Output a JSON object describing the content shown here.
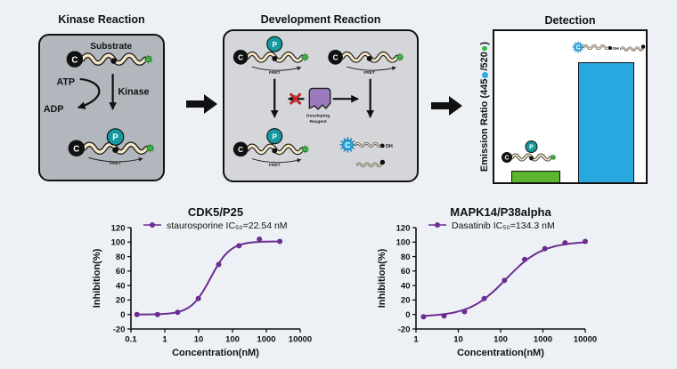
{
  "page": {
    "background": "#edf1f6"
  },
  "diagram": {
    "kinase_panel": {
      "title": "Kinase Reaction",
      "substrate": "Substrate",
      "atp": "ATP",
      "adp": "ADP",
      "kinase": "Kinase"
    },
    "development_panel": {
      "title": "Development Reaction",
      "reagent_line1": "Developing",
      "reagent_line2": "Reagent",
      "oh": "OH"
    },
    "detection_panel": {
      "title": "Detection",
      "ylabel_pre": "Emission Ratio (445",
      "ylabel_mid": "/520",
      "ylabel_post": ")"
    },
    "labels": {
      "c": "C",
      "p": "P",
      "fret": "FRET"
    },
    "colors": {
      "page_bg": "#edf1f6",
      "panel_dark": "#b2b6bd",
      "panel_light": "#d4d6d9",
      "teal": "#16989f",
      "green": "#3db54a",
      "blue": "#29abe2",
      "purple": "#9c7abe",
      "red": "#c1272d",
      "bar_green": "#5db52d",
      "bar_blue": "#29a8e0",
      "chain": "#f4e6c6"
    }
  },
  "chart_data": [
    {
      "type": "scatter-line",
      "title": "CDK5/P25",
      "legend": "staurosporine IC₅₀=22.54 nM",
      "xlabel": "Concentration(nM)",
      "ylabel": "Inhibition(%)",
      "color": "#6B2D90",
      "xlim": [
        0.1,
        10000
      ],
      "ylim": [
        -20,
        120
      ],
      "xticks": [
        "0.1",
        "1",
        "10",
        "100",
        "1000",
        "10000"
      ],
      "yticks": [
        -20,
        0,
        20,
        40,
        60,
        80,
        100,
        120
      ],
      "x": [
        0.15,
        0.61,
        2.4,
        9.8,
        39,
        156,
        625,
        2500
      ],
      "y": [
        0,
        0,
        3,
        22,
        69,
        95,
        104,
        101
      ],
      "curve": {
        "bottom": 0,
        "top": 101,
        "ic50": 22.54,
        "hill": 1.5
      }
    },
    {
      "type": "scatter-line",
      "title": "MAPK14/P38alpha",
      "legend": "Dasatinib IC₅₀=134.3 nM",
      "xlabel": "Concentration(nM)",
      "ylabel": "Inhibition(%)",
      "color": "#6B2D90",
      "xlim": [
        1,
        10000
      ],
      "ylim": [
        -20,
        120
      ],
      "xticks": [
        "1",
        "10",
        "100",
        "1000",
        "10000"
      ],
      "yticks": [
        -20,
        0,
        20,
        40,
        60,
        80,
        100,
        120
      ],
      "x": [
        1.5,
        4.6,
        14,
        41,
        123,
        370,
        1111,
        3333,
        10000
      ],
      "y": [
        -3,
        -2,
        4,
        22,
        47,
        76,
        91,
        99,
        101
      ],
      "curve": {
        "bottom": -3,
        "top": 101,
        "ic50": 134.3,
        "hill": 1.0
      }
    }
  ]
}
